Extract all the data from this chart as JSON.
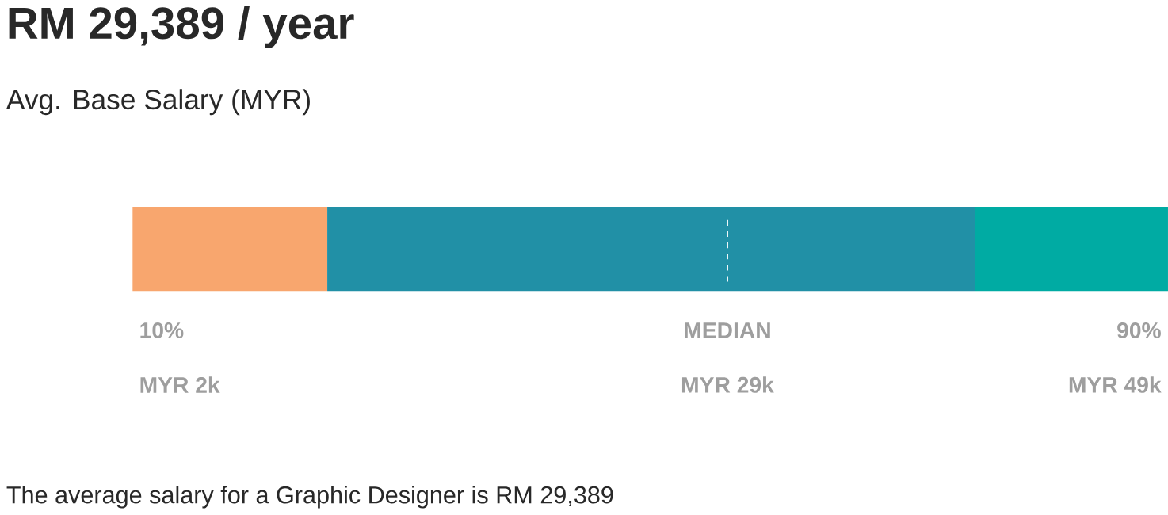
{
  "chart_data": {
    "type": "other",
    "title": "RM 29,389 / year",
    "subtitle": "Avg. Base Salary (MYR)",
    "categories": [
      "10%",
      "MEDIAN",
      "90%"
    ],
    "values": [
      2000,
      29000,
      49000
    ],
    "value_labels": [
      "MYR 2k",
      "MYR 29k",
      "MYR 49k"
    ],
    "colors": [
      "#f8a66e",
      "#2190a6",
      "#00aba3"
    ],
    "annotations": [
      "The average salary for a Graphic Designer is RM 29,389"
    ]
  }
}
